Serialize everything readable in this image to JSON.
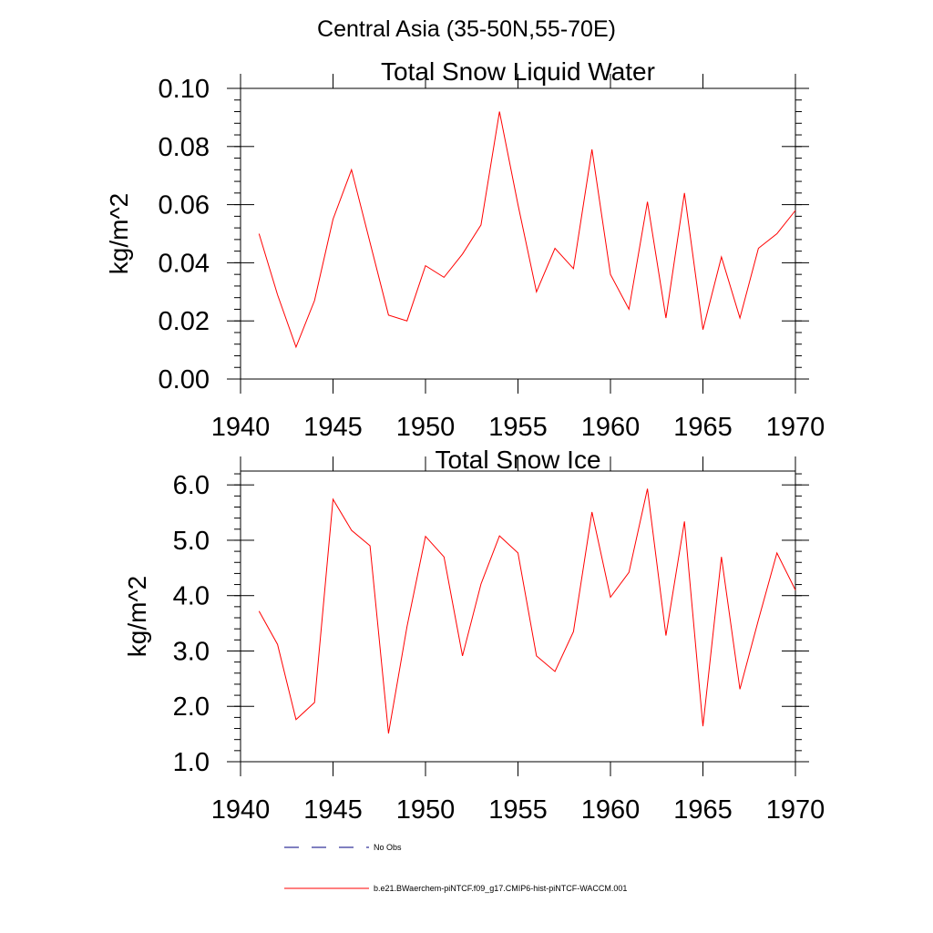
{
  "page": {
    "title": "Central Asia (35-50N,55-70E)"
  },
  "chart_data": [
    {
      "type": "line",
      "title": "Total Snow Liquid Water",
      "ylabel": "kg/m^2",
      "xlabel": "",
      "xlim": [
        1940,
        1970
      ],
      "ylim": [
        0.0,
        0.1
      ],
      "xticks": [
        1940,
        1945,
        1950,
        1955,
        1960,
        1965,
        1970
      ],
      "xtick_labels": [
        "1940",
        "1945",
        "1950",
        "1955",
        "1960",
        "1965",
        "1970"
      ],
      "yticks": [
        0.0,
        0.02,
        0.04,
        0.06,
        0.08,
        0.1
      ],
      "ytick_labels": [
        "0.00",
        "0.02",
        "0.04",
        "0.06",
        "0.08",
        "0.10"
      ],
      "grid": false,
      "series": [
        {
          "name": "b.e21.BWaerchem-piNTCF.f09_g17.CMIP6-hist-piNTCF-WACCM.001",
          "color": "#ff0000",
          "x": [
            1941,
            1942,
            1943,
            1944,
            1945,
            1946,
            1947,
            1948,
            1949,
            1950,
            1951,
            1952,
            1953,
            1954,
            1955,
            1956,
            1957,
            1958,
            1959,
            1960,
            1961,
            1962,
            1963,
            1964,
            1965,
            1966,
            1967,
            1968,
            1969,
            1970
          ],
          "y": [
            0.05,
            0.029,
            0.011,
            0.027,
            0.055,
            0.072,
            0.047,
            0.022,
            0.02,
            0.039,
            0.035,
            0.043,
            0.053,
            0.092,
            0.06,
            0.03,
            0.045,
            0.038,
            0.079,
            0.036,
            0.024,
            0.061,
            0.021,
            0.064,
            0.017,
            0.042,
            0.021,
            0.045,
            0.05,
            0.058
          ]
        }
      ]
    },
    {
      "type": "line",
      "title": "Total Snow Ice",
      "ylabel": "kg/m^2",
      "xlabel": "",
      "xlim": [
        1940,
        1970
      ],
      "ylim": [
        1.0,
        6.25
      ],
      "xticks": [
        1940,
        1945,
        1950,
        1955,
        1960,
        1965,
        1970
      ],
      "xtick_labels": [
        "1940",
        "1945",
        "1950",
        "1955",
        "1960",
        "1965",
        "1970"
      ],
      "yticks": [
        1.0,
        2.0,
        3.0,
        4.0,
        5.0,
        6.0
      ],
      "ytick_labels": [
        "1.0",
        "2.0",
        "3.0",
        "4.0",
        "5.0",
        "6.0"
      ],
      "grid": false,
      "series": [
        {
          "name": "b.e21.BWaerchem-piNTCF.f09_g17.CMIP6-hist-piNTCF-WACCM.001",
          "color": "#ff0000",
          "x": [
            1941,
            1942,
            1943,
            1944,
            1945,
            1946,
            1947,
            1948,
            1949,
            1950,
            1951,
            1952,
            1953,
            1954,
            1955,
            1956,
            1957,
            1958,
            1959,
            1960,
            1961,
            1962,
            1963,
            1964,
            1965,
            1966,
            1967,
            1968,
            1969,
            1970
          ],
          "y": [
            3.72,
            3.12,
            1.76,
            2.07,
            5.74,
            5.18,
            4.9,
            1.51,
            3.44,
            5.07,
            4.7,
            2.91,
            4.21,
            5.08,
            4.77,
            2.91,
            2.63,
            3.35,
            5.51,
            3.97,
            4.42,
            5.93,
            3.28,
            5.34,
            1.64,
            4.7,
            2.31,
            3.56,
            4.77,
            4.1
          ]
        }
      ]
    }
  ],
  "legend": {
    "items": [
      {
        "label": "No Obs",
        "color": "#000080",
        "dash": true
      },
      {
        "label": "b.e21.BWaerchem-piNTCF.f09_g17.CMIP6-hist-piNTCF-WACCM.001",
        "color": "#ff0000",
        "dash": false
      }
    ]
  }
}
